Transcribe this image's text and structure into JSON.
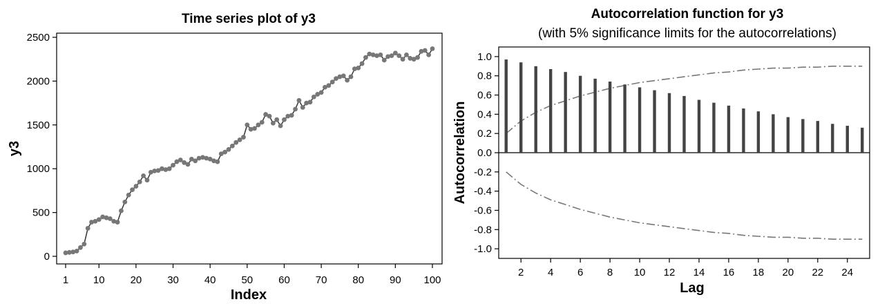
{
  "chart_data": [
    {
      "type": "line",
      "title": "Time series plot of y3",
      "xlabel": "Index",
      "ylabel": "y3",
      "xlim": [
        1,
        100
      ],
      "ylim": [
        0,
        2500
      ],
      "xticks": [
        1,
        10,
        20,
        30,
        40,
        50,
        60,
        70,
        80,
        90,
        100
      ],
      "yticks": [
        0,
        500,
        1000,
        1500,
        2000,
        2500
      ],
      "line_color": "#333333",
      "marker_color": "#777777",
      "series": [
        {
          "values": [
            40,
            45,
            50,
            60,
            100,
            140,
            320,
            390,
            400,
            420,
            450,
            440,
            430,
            400,
            390,
            520,
            620,
            700,
            760,
            800,
            850,
            920,
            870,
            960,
            975,
            980,
            1000,
            990,
            1000,
            1040,
            1080,
            1100,
            1070,
            1050,
            1110,
            1090,
            1120,
            1130,
            1120,
            1110,
            1090,
            1080,
            1170,
            1190,
            1220,
            1260,
            1300,
            1330,
            1360,
            1500,
            1450,
            1460,
            1500,
            1530,
            1620,
            1600,
            1520,
            1560,
            1490,
            1560,
            1600,
            1610,
            1680,
            1780,
            1700,
            1750,
            1760,
            1820,
            1850,
            1870,
            1930,
            1950,
            1990,
            2030,
            2050,
            2060,
            2010,
            2050,
            2140,
            2150,
            2200,
            2270,
            2310,
            2300,
            2290,
            2300,
            2240,
            2280,
            2290,
            2320,
            2290,
            2250,
            2300,
            2260,
            2250,
            2270,
            2340,
            2350,
            2300,
            2370
          ]
        }
      ]
    },
    {
      "type": "bar",
      "title": "Autocorrelation function for y3",
      "subtitle": "(with 5% significance limits for the autocorrelations)",
      "xlabel": "Lag",
      "ylabel": "Autocorrelation",
      "xlim": [
        0.5,
        25.5
      ],
      "ylim": [
        -1.1,
        1.1
      ],
      "xticks": [
        2,
        4,
        6,
        8,
        10,
        12,
        14,
        16,
        18,
        20,
        22,
        24
      ],
      "yticks": [
        "1.0",
        "0.8",
        "0.6",
        "0.4",
        "0.2",
        "0.0",
        "-0.2",
        "-0.4",
        "-0.6",
        "-0.8",
        "-1.0"
      ],
      "bar_color": "#444444",
      "limit_color": "#777777",
      "lags": [
        1,
        2,
        3,
        4,
        5,
        6,
        7,
        8,
        9,
        10,
        11,
        12,
        13,
        14,
        15,
        16,
        17,
        18,
        19,
        20,
        21,
        22,
        23,
        24,
        25
      ],
      "values": [
        0.97,
        0.94,
        0.9,
        0.87,
        0.84,
        0.8,
        0.77,
        0.74,
        0.71,
        0.68,
        0.65,
        0.62,
        0.59,
        0.55,
        0.52,
        0.49,
        0.46,
        0.43,
        0.4,
        0.37,
        0.35,
        0.33,
        0.3,
        0.28,
        0.26
      ],
      "upper_limit": [
        0.2,
        0.33,
        0.42,
        0.49,
        0.54,
        0.59,
        0.63,
        0.67,
        0.7,
        0.73,
        0.75,
        0.77,
        0.79,
        0.81,
        0.83,
        0.84,
        0.86,
        0.87,
        0.88,
        0.88,
        0.89,
        0.89,
        0.9,
        0.9,
        0.9
      ],
      "lower_limit": [
        -0.2,
        -0.33,
        -0.42,
        -0.49,
        -0.54,
        -0.59,
        -0.63,
        -0.67,
        -0.7,
        -0.73,
        -0.75,
        -0.77,
        -0.79,
        -0.81,
        -0.83,
        -0.84,
        -0.86,
        -0.87,
        -0.88,
        -0.88,
        -0.89,
        -0.89,
        -0.9,
        -0.9,
        -0.9
      ]
    }
  ]
}
